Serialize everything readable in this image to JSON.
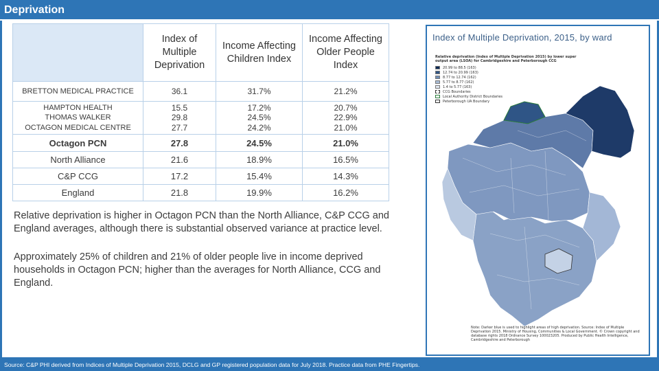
{
  "header": {
    "title": "Deprivation"
  },
  "table": {
    "columns": [
      "Index of Multiple Deprivation",
      "Income Affecting Children Index",
      "Income Affecting Older People Index"
    ],
    "rows": {
      "bretton": {
        "label": "BRETTON MEDICAL PRACTICE",
        "imd": "36.1",
        "children": "31.7%",
        "older": "21.2%"
      },
      "hampton": {
        "label": "HAMPTON HEALTH",
        "imd": "15.5",
        "children": "17.2%",
        "older": "20.7%"
      },
      "thomas": {
        "label": "THOMAS WALKER",
        "imd": "29.8",
        "children": "24.5%",
        "older": "22.9%"
      },
      "octagon_mc": {
        "label": "OCTAGON MEDICAL CENTRE",
        "imd": "27.7",
        "children": "24.2%",
        "older": "21.0%"
      },
      "octagon_pcn": {
        "label": "Octagon PCN",
        "imd": "27.8",
        "children": "24.5%",
        "older": "21.0%"
      },
      "north_alliance": {
        "label": "North Alliance",
        "imd": "21.6",
        "children": "18.9%",
        "older": "16.5%"
      },
      "cp_ccg": {
        "label": "C&P CCG",
        "imd": "17.2",
        "children": "15.4%",
        "older": "14.3%"
      },
      "england": {
        "label": "England",
        "imd": "21.8",
        "children": "19.9%",
        "older": "16.2%"
      }
    }
  },
  "body": {
    "paragraph1": "Relative deprivation is higher in Octagon PCN than the North Alliance, C&P CCG and England averages, although there is substantial observed variance at practice level.",
    "paragraph2": "Approximately 25% of children and 21% of older people live in income deprived households in Octagon PCN; higher than the averages for North Alliance, CCG and England."
  },
  "map": {
    "title": "Index of Multiple Deprivation, 2015, by ward",
    "legend_title": "Relative deprivation (Index of Multiple Deprivation 2015) by lower super output area (LSOA) for Cambridgeshire and Peterborough CCG",
    "legend_items": [
      "20.99 to 88.5  (163)",
      "12.74 to 20.99  (163)",
      "8.77 to 12.74  (162)",
      "5.77 to 8.77  (162)",
      "1.4 to 5.77  (163)",
      "CCG Boundaries",
      "Local Authority District Boundaries",
      "Peterborough UA Boundary"
    ],
    "colors": [
      "#0d2a55",
      "#2f5586",
      "#6f8db6",
      "#a9bcd6",
      "#dfe6f0"
    ],
    "notes": "Note: Darker blue is used to highlight areas of high deprivation. Source: Index of Multiple Deprivation 2015. Ministry of Housing, Communities & Local Government. © Crown copyright and database rights 2018 Ordnance Survey 100023205. Produced by Public Health Intelligence, Cambridgeshire and Peterborough"
  },
  "footer": {
    "source": "Source: C&P PHI derived from Indices of Multiple Deprivation 2015, DCLG and GP registered population data for July 2018. Practice data from PHE Fingertips."
  }
}
